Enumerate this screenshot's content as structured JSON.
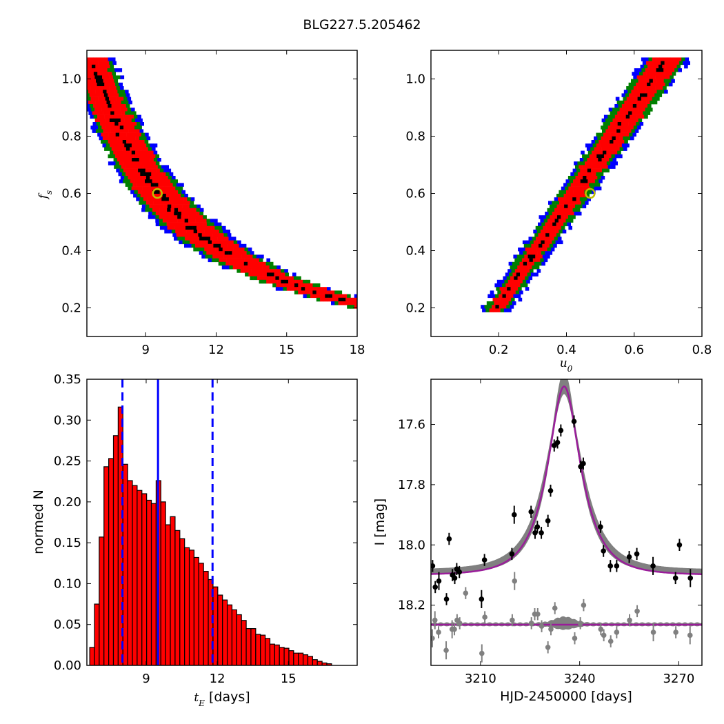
{
  "title": "BLG227.5.205462",
  "colors": {
    "sigma1": "#ff0000",
    "sigma2": "#008000",
    "sigma3": "#0000ff",
    "best": "#000000",
    "marker_edge": "#bfbf00",
    "hist_fill": "#ff0000",
    "vline": "#0000ff",
    "model": "#9a1d9a",
    "model_band": "#808080",
    "residual": "#808080",
    "data": "#000000"
  },
  "chart_data": [
    {
      "type": "heatmap",
      "xlabel": "",
      "ylabel": "f_s",
      "xlim": [
        6.5,
        18
      ],
      "ylim": [
        0.1,
        1.1
      ],
      "xticks": [
        "9",
        "12",
        "15",
        "18"
      ],
      "yticks": [
        "0.2",
        "0.4",
        "0.6",
        "0.8",
        "1.0"
      ],
      "best_fit": {
        "x": 9.5,
        "y": 0.6
      },
      "ridge": {
        "x_at_fs_1_05": 8.0,
        "x_at_fs_0_2": 16.0
      },
      "levels": [
        "best",
        "1-sigma",
        "2-sigma",
        "3-sigma"
      ]
    },
    {
      "type": "heatmap",
      "xlabel": "u_0",
      "ylabel": "",
      "xlim": [
        0.0,
        0.8
      ],
      "ylim": [
        0.1,
        1.1
      ],
      "xticks": [
        "0.2",
        "0.4",
        "0.6",
        "0.8"
      ],
      "yticks": [
        "0.2",
        "0.4",
        "0.6",
        "0.8",
        "1.0"
      ],
      "best_fit": {
        "x": 0.47,
        "y": 0.6
      },
      "ridge": {
        "x_at_fs_0_2": 0.19,
        "x_at_fs_1_05": 0.68
      },
      "levels": [
        "best",
        "1-sigma",
        "2-sigma",
        "3-sigma"
      ]
    },
    {
      "type": "bar",
      "xlabel": "t_E [days]",
      "ylabel": "normed N",
      "xlim": [
        6.5,
        17.9
      ],
      "ylim": [
        0,
        0.35
      ],
      "xticks": [
        "9",
        "12",
        "15"
      ],
      "yticks": [
        "0.00",
        "0.05",
        "0.10",
        "0.15",
        "0.20",
        "0.25",
        "0.30",
        "0.35"
      ],
      "bin_start": 6.62,
      "bin_width": 0.2,
      "values": [
        0.022,
        0.075,
        0.157,
        0.243,
        0.253,
        0.281,
        0.316,
        0.246,
        0.226,
        0.22,
        0.214,
        0.21,
        0.202,
        0.198,
        0.226,
        0.2,
        0.172,
        0.182,
        0.165,
        0.155,
        0.144,
        0.141,
        0.132,
        0.125,
        0.115,
        0.105,
        0.096,
        0.086,
        0.08,
        0.074,
        0.068,
        0.062,
        0.055,
        0.045,
        0.045,
        0.038,
        0.037,
        0.033,
        0.026,
        0.025,
        0.022,
        0.021,
        0.018,
        0.015,
        0.015,
        0.013,
        0.011,
        0.007,
        0.005,
        0.003,
        0.002
      ],
      "vlines": {
        "median": 9.5,
        "lower": 8.0,
        "upper": 11.8
      }
    },
    {
      "type": "scatter",
      "xlabel": "HJD-2450000 [days]",
      "ylabel": "I [mag]",
      "xlim": [
        3195,
        3277
      ],
      "ylim": [
        18.4,
        17.45
      ],
      "y_inverted": true,
      "xticks": [
        "3210",
        "3240",
        "3270"
      ],
      "yticks": [
        "17.6",
        "17.8",
        "18.0",
        "18.2"
      ],
      "model": {
        "t0": 3235.3,
        "tE": 9.5,
        "u0": 0.47,
        "fs": 0.6,
        "I_base": 18.09
      },
      "residual_offset": 18.265,
      "data_points": [
        {
          "x": 3195.5,
          "y": 18.07,
          "e": 0.02
        },
        {
          "x": 3196.3,
          "y": 18.14,
          "e": 0.02
        },
        {
          "x": 3197.4,
          "y": 18.12,
          "e": 0.03
        },
        {
          "x": 3199.7,
          "y": 18.18,
          "e": 0.02
        },
        {
          "x": 3200.5,
          "y": 17.98,
          "e": 0.02
        },
        {
          "x": 3201.5,
          "y": 18.1,
          "e": 0.02
        },
        {
          "x": 3202.2,
          "y": 18.11,
          "e": 0.02
        },
        {
          "x": 3202.8,
          "y": 18.08,
          "e": 0.02
        },
        {
          "x": 3203.6,
          "y": 18.09,
          "e": 0.02
        },
        {
          "x": 3210.3,
          "y": 18.18,
          "e": 0.03
        },
        {
          "x": 3211.2,
          "y": 18.05,
          "e": 0.02
        },
        {
          "x": 3219.5,
          "y": 18.03,
          "e": 0.02
        },
        {
          "x": 3220.2,
          "y": 17.9,
          "e": 0.03
        },
        {
          "x": 3225.3,
          "y": 17.89,
          "e": 0.02
        },
        {
          "x": 3226.5,
          "y": 17.96,
          "e": 0.02
        },
        {
          "x": 3227.2,
          "y": 17.94,
          "e": 0.02
        },
        {
          "x": 3228.4,
          "y": 17.96,
          "e": 0.02
        },
        {
          "x": 3230.4,
          "y": 17.92,
          "e": 0.02
        },
        {
          "x": 3231.2,
          "y": 17.82,
          "e": 0.02
        },
        {
          "x": 3232.3,
          "y": 17.67,
          "e": 0.02
        },
        {
          "x": 3233.3,
          "y": 17.66,
          "e": 0.02
        },
        {
          "x": 3234.3,
          "y": 17.62,
          "e": 0.02
        },
        {
          "x": 3238.3,
          "y": 17.59,
          "e": 0.02
        },
        {
          "x": 3240.3,
          "y": 17.74,
          "e": 0.02
        },
        {
          "x": 3241.1,
          "y": 17.73,
          "e": 0.02
        },
        {
          "x": 3246.3,
          "y": 17.94,
          "e": 0.02
        },
        {
          "x": 3247.2,
          "y": 18.02,
          "e": 0.02
        },
        {
          "x": 3249.3,
          "y": 18.07,
          "e": 0.02
        },
        {
          "x": 3251.2,
          "y": 18.07,
          "e": 0.02
        },
        {
          "x": 3255.0,
          "y": 18.04,
          "e": 0.02
        },
        {
          "x": 3257.3,
          "y": 18.03,
          "e": 0.02
        },
        {
          "x": 3262.2,
          "y": 18.07,
          "e": 0.03
        },
        {
          "x": 3269.0,
          "y": 18.11,
          "e": 0.02
        },
        {
          "x": 3270.2,
          "y": 18.0,
          "e": 0.02
        },
        {
          "x": 3273.5,
          "y": 18.11,
          "e": 0.03
        }
      ],
      "residual_points": [
        {
          "x": 3195.4,
          "y": 18.31,
          "e": 0.03
        },
        {
          "x": 3196.2,
          "y": 18.25,
          "e": 0.03
        },
        {
          "x": 3197.3,
          "y": 18.29,
          "e": 0.02
        },
        {
          "x": 3199.6,
          "y": 18.35,
          "e": 0.03
        },
        {
          "x": 3201.4,
          "y": 18.28,
          "e": 0.03
        },
        {
          "x": 3202.1,
          "y": 18.28,
          "e": 0.02
        },
        {
          "x": 3202.9,
          "y": 18.25,
          "e": 0.02
        },
        {
          "x": 3203.7,
          "y": 18.26,
          "e": 0.02
        },
        {
          "x": 3205.5,
          "y": 18.16,
          "e": 0.02
        },
        {
          "x": 3210.4,
          "y": 18.36,
          "e": 0.03
        },
        {
          "x": 3211.3,
          "y": 18.24,
          "e": 0.02
        },
        {
          "x": 3219.6,
          "y": 18.25,
          "e": 0.02
        },
        {
          "x": 3220.3,
          "y": 18.12,
          "e": 0.03
        },
        {
          "x": 3225.4,
          "y": 18.26,
          "e": 0.02
        },
        {
          "x": 3226.4,
          "y": 18.23,
          "e": 0.02
        },
        {
          "x": 3227.3,
          "y": 18.23,
          "e": 0.02
        },
        {
          "x": 3228.5,
          "y": 18.27,
          "e": 0.02
        },
        {
          "x": 3230.4,
          "y": 18.34,
          "e": 0.02
        },
        {
          "x": 3231.3,
          "y": 18.28,
          "e": 0.02
        },
        {
          "x": 3232.5,
          "y": 18.21,
          "e": 0.02
        },
        {
          "x": 3238.5,
          "y": 18.31,
          "e": 0.02
        },
        {
          "x": 3240.2,
          "y": 18.26,
          "e": 0.02
        },
        {
          "x": 3241.2,
          "y": 18.2,
          "e": 0.02
        },
        {
          "x": 3246.4,
          "y": 18.28,
          "e": 0.02
        },
        {
          "x": 3247.3,
          "y": 18.3,
          "e": 0.02
        },
        {
          "x": 3249.4,
          "y": 18.32,
          "e": 0.02
        },
        {
          "x": 3251.2,
          "y": 18.29,
          "e": 0.02
        },
        {
          "x": 3255.1,
          "y": 18.25,
          "e": 0.02
        },
        {
          "x": 3257.4,
          "y": 18.22,
          "e": 0.02
        },
        {
          "x": 3262.3,
          "y": 18.29,
          "e": 0.03
        },
        {
          "x": 3269.1,
          "y": 18.29,
          "e": 0.02
        },
        {
          "x": 3273.4,
          "y": 18.3,
          "e": 0.03
        }
      ]
    }
  ]
}
